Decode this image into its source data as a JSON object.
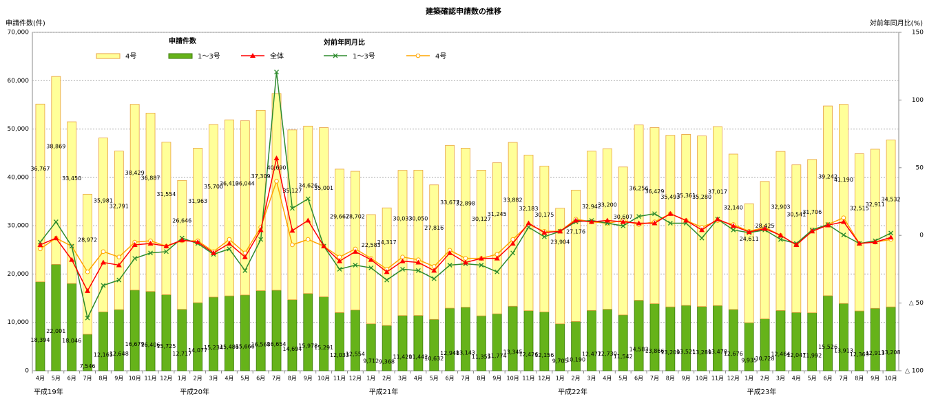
{
  "chart_data": {
    "type": "bar",
    "title": "建築確認申請数の推移",
    "y_label": "申請件数(件)",
    "y2_label": "対前年同月比(%)",
    "bar_legend_title": "申請件数",
    "line_legend_title": "対前年同月比",
    "categories": [
      "4月",
      "5月",
      "6月",
      "7月",
      "8月",
      "9月",
      "10月",
      "11月",
      "12月",
      "1月",
      "2月",
      "3月",
      "4月",
      "5月",
      "6月",
      "7月",
      "8月",
      "9月",
      "10月",
      "11月",
      "12月",
      "1月",
      "2月",
      "3月",
      "4月",
      "5月",
      "6月",
      "7月",
      "8月",
      "9月",
      "10月",
      "11月",
      "12月",
      "1月",
      "2月",
      "3月",
      "4月",
      "5月",
      "6月",
      "7月",
      "8月",
      "9月",
      "10月",
      "11月",
      "12月",
      "1月",
      "2月",
      "3月",
      "4月",
      "5月",
      "6月",
      "7月",
      "8月",
      "9月",
      "10月"
    ],
    "x_groups": [
      "平成19年",
      "平成20年",
      "平成21年",
      "平成22年",
      "平成23年"
    ],
    "series": [
      {
        "name": "1～3号",
        "type": "bar",
        "color": "#66b31a",
        "values": [
          18394,
          22001,
          18046,
          7546,
          12165,
          12648,
          16679,
          16406,
          15725,
          12717,
          14077,
          15234,
          15486,
          15666,
          16568,
          16654,
          14694,
          15978,
          15291,
          12033,
          12554,
          9712,
          9368,
          11420,
          11442,
          10632,
          12948,
          13143,
          11355,
          11774,
          13345,
          12426,
          12156,
          9705,
          10190,
          12477,
          12730,
          11542,
          14583,
          13866,
          13209,
          13521,
          13289,
          13478,
          12676,
          9935,
          10728,
          12464,
          12047,
          11992,
          15526,
          13913,
          12369,
          12913,
          13208
        ],
        "value_labels": [
          "18,394",
          "22,001",
          "18,046",
          "7,546",
          "12,165",
          "12,648",
          "16,679",
          "16,406",
          "15,725",
          "12,717",
          "14,077",
          "15,234",
          "15,486",
          "15,666",
          "16,568",
          "16,654",
          "14,694",
          "15,978",
          "15,291",
          "12,033",
          "12,554",
          "9,712",
          "9,368",
          "11,420",
          "11,442",
          "10,632",
          "12,948",
          "13,143",
          "11,355",
          "11,774",
          "13,345",
          "12,426",
          "12,156",
          "9,705",
          "10,190",
          "12,477",
          "12,730",
          "11,542",
          "14,583",
          "13,866",
          "13,209",
          "13,521",
          "13,289",
          "13,478",
          "12,676",
          "9,935",
          "10,728",
          "12,464",
          "12,047",
          "11,992",
          "15,526",
          "13,913",
          "12,369",
          "12,913",
          "13,208"
        ]
      },
      {
        "name": "4号",
        "type": "bar",
        "color": "#ffff99",
        "values": [
          36767,
          38869,
          33450,
          28972,
          35981,
          32791,
          38429,
          36887,
          31554,
          26646,
          31963,
          35700,
          36410,
          36044,
          37309,
          40690,
          35127,
          34626,
          35001,
          29667,
          28702,
          22583,
          24317,
          30033,
          30050,
          27816,
          33677,
          32898,
          30127,
          31245,
          33882,
          32183,
          30175,
          23904,
          27176,
          32942,
          33200,
          30607,
          36256,
          36429,
          35493,
          35361,
          35280,
          37017,
          32140,
          24611,
          28425,
          32903,
          30541,
          31706,
          39242,
          41190,
          32515,
          32911,
          34532
        ],
        "value_labels": [
          "36,767",
          "38,869",
          "33,450",
          "28,972",
          "35,981",
          "32,791",
          "38,429",
          "36,887",
          "31,554",
          "26,646",
          "31,963",
          "35,700",
          "36,410",
          "36,044",
          "37,309",
          "40,690",
          "35,127",
          "34,626",
          "35,001",
          "29,667",
          "28,702",
          "22,583",
          "24,317",
          "30,033",
          "30,050",
          "27,816",
          "33,677",
          "32,898",
          "30,127",
          "31,245",
          "33,882",
          "32,183",
          "30,175",
          "23,904",
          "27,176",
          "32,942",
          "33,200",
          "30,607",
          "36,256",
          "36,429",
          "35,493",
          "35,361",
          "35,280",
          "37,017",
          "32,140",
          "24,611",
          "28,425",
          "32,903",
          "30,541",
          "31,706",
          "39,242",
          "41,190",
          "32,515",
          "32,911",
          "34,532"
        ]
      },
      {
        "name": "全体",
        "type": "line",
        "axis": "y2",
        "color": "#ff0000",
        "marker": "triangle",
        "values": [
          -7,
          -2,
          -18,
          -41,
          -20,
          -22,
          -7,
          -6,
          -8,
          -3.5,
          -5,
          -13,
          -6,
          -16,
          4,
          57,
          3.5,
          11,
          -8,
          -19,
          -12,
          -18,
          -27,
          -19,
          -20,
          -26,
          -13,
          -20,
          -17,
          -17,
          -6,
          9,
          2,
          3,
          11,
          10,
          11,
          10,
          9,
          9,
          16,
          11,
          4,
          12,
          7,
          2.5,
          5,
          0,
          -7,
          3,
          7.5,
          10,
          -6,
          -5,
          -1.5
        ]
      },
      {
        "name": "1～3号",
        "type": "line",
        "axis": "y2",
        "color": "#2e8b2e",
        "marker": "cross",
        "values": [
          -5,
          10,
          -8,
          -61,
          -37,
          -33,
          -17,
          -13,
          -12,
          -2,
          -6,
          -14,
          -10,
          -26,
          -3,
          120.7,
          20,
          27,
          -8,
          -25,
          -22,
          -24,
          -33,
          -25,
          -26,
          -32,
          -22,
          -21,
          -22,
          -27,
          -13,
          6,
          -1,
          3,
          10,
          11,
          9,
          7,
          14,
          16,
          9,
          9,
          -2,
          12,
          4,
          2,
          4,
          -3,
          -6,
          4,
          8,
          0.3,
          -6,
          -4,
          1.7
        ]
      },
      {
        "name": "4号",
        "type": "line",
        "axis": "y2",
        "color": "#ffa500",
        "marker": "circle",
        "values": [
          -10,
          -2,
          -8,
          -27,
          -12,
          -16,
          -5,
          -4,
          -8,
          -4,
          -4,
          -12,
          -3,
          -13,
          6,
          40,
          -7,
          -3,
          -8,
          -16,
          -10,
          -17,
          -25,
          -16,
          -18,
          -23,
          -11,
          -17,
          -17,
          -14,
          -3,
          8,
          3,
          3,
          12,
          10,
          9,
          11,
          8,
          10,
          16,
          11,
          6,
          11,
          8,
          3,
          6,
          0,
          -7,
          4,
          8,
          13,
          -6,
          -5,
          -3
        ]
      }
    ],
    "ylim": [
      0,
      70000
    ],
    "yticks": [
      0,
      {
        "value": 10000,
        "label": "10,000"
      },
      {
        "value": 20000,
        "label": "20,000"
      },
      {
        "value": 30000,
        "label": "30,000"
      },
      {
        "value": 40000,
        "label": "40,000"
      },
      {
        "value": 50000,
        "label": "50,000"
      },
      {
        "value": 60000,
        "label": "60,000"
      },
      {
        "value": 70000,
        "label": "70,000"
      }
    ],
    "y2lim": [
      -100,
      150
    ],
    "y2ticks": [
      150,
      100,
      50,
      0,
      {
        "value": -50,
        "label": "△ 50"
      },
      {
        "value": -100,
        "label": "△ 100"
      }
    ],
    "grid": true
  }
}
